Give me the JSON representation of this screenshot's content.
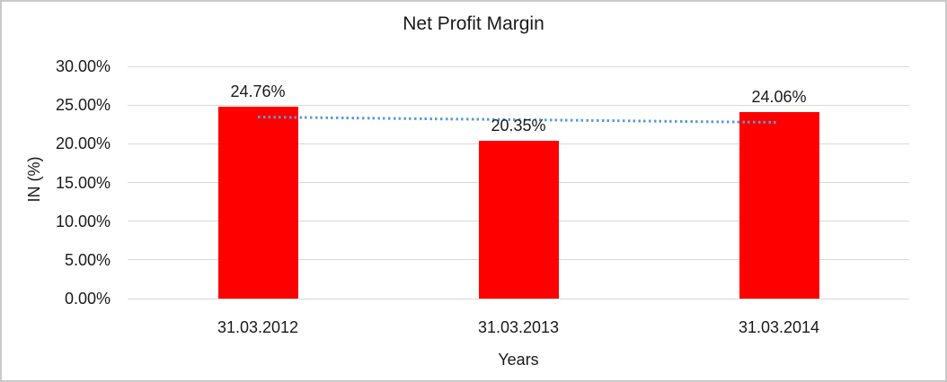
{
  "chart_data": {
    "type": "bar",
    "title": "Net Profit Margin",
    "xlabel": "Years",
    "ylabel": "IN (%)",
    "categories": [
      "31.03.2012",
      "31.03.2013",
      "31.03.2014"
    ],
    "values": [
      24.76,
      20.35,
      24.06
    ],
    "value_labels": [
      "24.76%",
      "20.35%",
      "24.06%"
    ],
    "ylim": [
      0,
      30
    ],
    "ytick_step": 5,
    "ytick_labels": [
      "30.00%",
      "25.00%",
      "20.00%",
      "15.00%",
      "10.00%",
      "5.00%",
      "0.00%"
    ],
    "grid": true,
    "legend": false,
    "bar_color": "#ff0000",
    "gridline_color": "#d9d9d9",
    "text_color": "#1a1a1a",
    "trendline": {
      "kind": "linear",
      "style": "dotted",
      "color": "#5b9bd5",
      "start_value": 23.41,
      "end_value": 22.71
    }
  }
}
